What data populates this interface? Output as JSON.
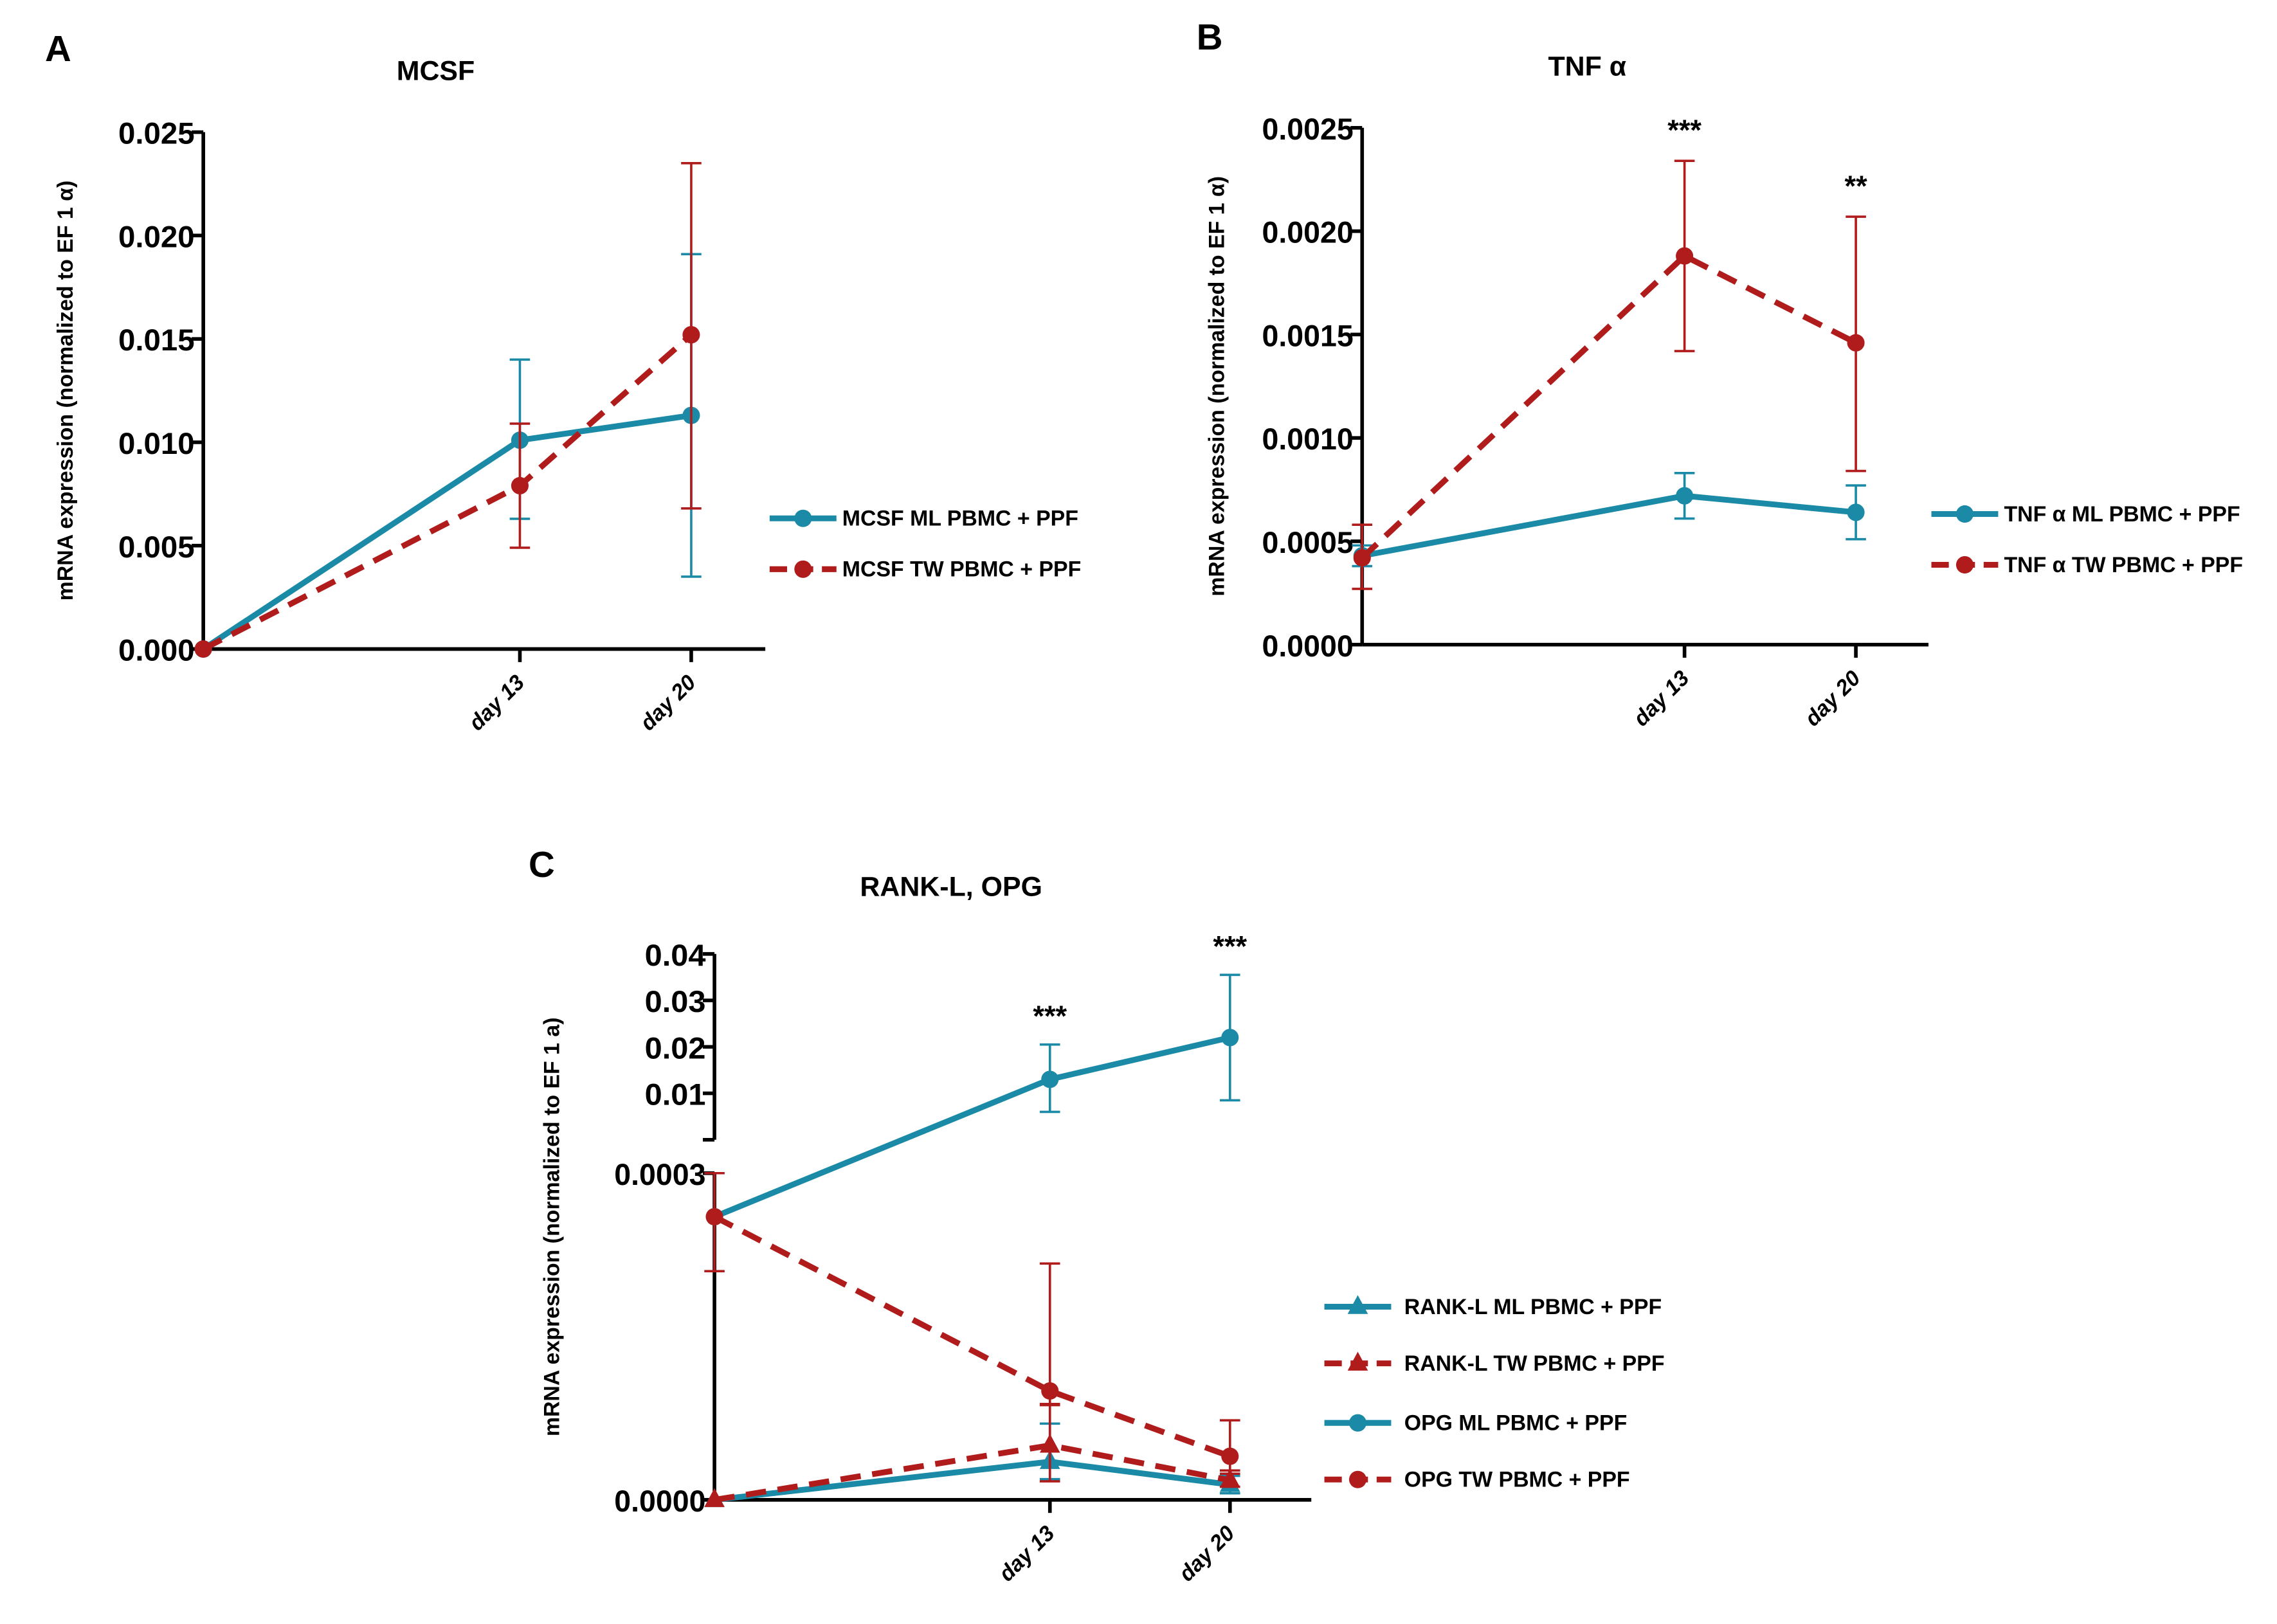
{
  "colors": {
    "ml": "#1a8aa6",
    "tw": "#b01c1c",
    "axis": "#000000"
  },
  "chart_data": [
    {
      "panel": "A",
      "type": "line",
      "title": "MCSF",
      "ylabel": "mRNA expression (normalized to EF 1 α)",
      "xlabel": "",
      "categories": [
        "",
        "day 13",
        "day 20"
      ],
      "ylim": [
        0,
        0.025
      ],
      "yticks": [
        "0.000",
        "0.005",
        "0.010",
        "0.015",
        "0.020",
        "0.025"
      ],
      "ytick_values": [
        0,
        0.005,
        0.01,
        0.015,
        0.02,
        0.025
      ],
      "legend_position": "right",
      "series": [
        {
          "name": "MCSF ML PBMC + PPF",
          "color_key": "ml",
          "dashed": false,
          "marker": "circle",
          "values": [
            0,
            0.0101,
            0.0113
          ],
          "err_low": [
            0,
            0.0063,
            0.0035
          ],
          "err_high": [
            0,
            0.014,
            0.0191
          ]
        },
        {
          "name": "MCSF TW PBMC + PPF",
          "color_key": "tw",
          "dashed": true,
          "marker": "circle",
          "values": [
            0,
            0.0079,
            0.0152
          ],
          "err_low": [
            0,
            0.0049,
            0.0068
          ],
          "err_high": [
            0,
            0.0109,
            0.0235
          ]
        }
      ],
      "annotations": []
    },
    {
      "panel": "B",
      "type": "line",
      "title": "TNF α",
      "ylabel": "mRNA expression (normalized to EF 1 α)",
      "xlabel": "",
      "categories": [
        "",
        "day 13",
        "day 20"
      ],
      "ylim": [
        0,
        0.0025
      ],
      "yticks": [
        "0.0000",
        "0.0005",
        "0.0010",
        "0.0015",
        "0.0020",
        "0.0025"
      ],
      "ytick_values": [
        0,
        0.0005,
        0.001,
        0.0015,
        0.002,
        0.0025
      ],
      "legend_position": "right",
      "series": [
        {
          "name": "TNF α ML PBMC + PPF",
          "color_key": "ml",
          "dashed": false,
          "marker": "circle",
          "values": [
            0.00043,
            0.00072,
            0.00064
          ],
          "err_low": [
            0.00038,
            0.00061,
            0.00051
          ],
          "err_high": [
            0.00048,
            0.00083,
            0.00077
          ]
        },
        {
          "name": "TNF α TW PBMC + PPF",
          "color_key": "tw",
          "dashed": true,
          "marker": "circle",
          "values": [
            0.00042,
            0.00188,
            0.00146
          ],
          "err_low": [
            0.00027,
            0.00142,
            0.00084
          ],
          "err_high": [
            0.00058,
            0.00234,
            0.00207
          ]
        }
      ],
      "annotations": [
        {
          "text": "***",
          "category": 1,
          "value": 0.00244
        },
        {
          "text": "**",
          "category": 2,
          "value": 0.00217
        }
      ]
    },
    {
      "panel": "C",
      "type": "line",
      "title": "RANK-L, OPG",
      "ylabel": "mRNA expression (normalized to EF 1 a)",
      "xlabel": "",
      "categories": [
        "",
        "day 13",
        "day 20"
      ],
      "ylim": [
        0,
        0.04
      ],
      "axis_break": {
        "lower": [
          0,
          0.0003
        ],
        "upper": [
          0,
          0.04
        ]
      },
      "yticks": [
        "0.0000",
        "0.0003",
        "0.01",
        "0.02",
        "0.03",
        "0.04"
      ],
      "ytick_values": [
        0,
        0.0003,
        0.01,
        0.02,
        0.03,
        0.04
      ],
      "legend_position": "right",
      "series": [
        {
          "name": "RANK-L ML PBMC + PPF",
          "color_key": "ml",
          "dashed": false,
          "marker": "triangle",
          "values": [
            0,
            3.5e-05,
            1.4e-05
          ],
          "err_low": [
            0,
            1.9e-05,
            6e-06
          ],
          "err_high": [
            0,
            7e-05,
            2.2e-05
          ]
        },
        {
          "name": "RANK-L TW PBMC + PPF",
          "color_key": "tw",
          "dashed": true,
          "marker": "triangle",
          "values": [
            0,
            5e-05,
            1.8e-05
          ],
          "err_low": [
            0,
            1.7e-05,
            1.2e-05
          ],
          "err_high": [
            0,
            8.8e-05,
            2.4e-05
          ]
        },
        {
          "name": "OPG ML PBMC + PPF",
          "color_key": "ml",
          "dashed": false,
          "marker": "circle",
          "values": [
            0.00026,
            0.013,
            0.022
          ],
          "err_low": [
            0.00026,
            0.006,
            0.0085
          ],
          "err_high": [
            0.00026,
            0.0205,
            0.0355
          ]
        },
        {
          "name": "OPG TW PBMC + PPF",
          "color_key": "tw",
          "dashed": true,
          "marker": "circle",
          "values": [
            0.00026,
            0.0001,
            4e-05
          ],
          "err_low": [
            0.00021,
            8.7e-05,
            2.7e-05
          ],
          "err_high": [
            0.0003,
            0.000217,
            7.3e-05
          ]
        }
      ],
      "annotations": [
        {
          "text": "***",
          "category": 1,
          "value": 0.0245
        },
        {
          "text": "***",
          "category": 2,
          "value": 0.0395
        }
      ]
    }
  ]
}
